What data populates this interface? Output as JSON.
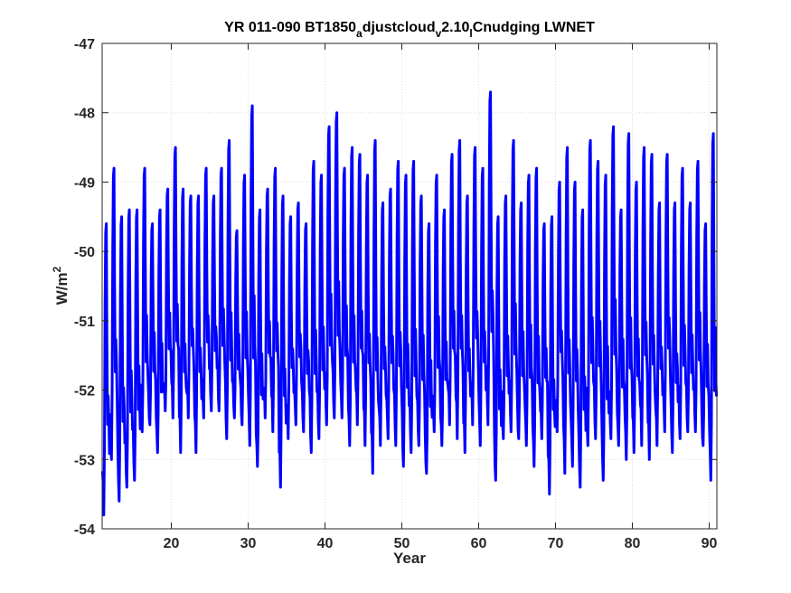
{
  "chart_data": {
    "type": "line",
    "title": {
      "p1": "YR 011-090 BT1850",
      "s1": "a",
      "p2": "djustcloud",
      "s2": "v",
      "p3": "2.10",
      "s3": "l",
      "p4": "Cnudging LWNET"
    },
    "xlabel": "Year",
    "ylabel": {
      "base": "W/m",
      "sup": "2"
    },
    "xlim": [
      11,
      91
    ],
    "ylim": [
      -54,
      -47
    ],
    "xticks": [
      20,
      30,
      40,
      50,
      60,
      70,
      80,
      90
    ],
    "yticks": [
      -54,
      -53,
      -52,
      -51,
      -50,
      -49,
      -48,
      -47
    ],
    "xtick_labels": [
      "20",
      "30",
      "40",
      "50",
      "60",
      "70",
      "80",
      "90"
    ],
    "ytick_labels": [
      "-54",
      "-53",
      "-52",
      "-51",
      "-50",
      "-49",
      "-48",
      "-47"
    ],
    "grid": true,
    "line_color": "#0000ff",
    "series": [
      {
        "name": "",
        "color": "#0000ff",
        "annual_maxima": [
          -49.6,
          -48.8,
          -49.5,
          -49.4,
          -49.4,
          -48.8,
          -49.6,
          -49.4,
          -49.1,
          -48.5,
          -49.1,
          -49.2,
          -49.2,
          -48.8,
          -49.2,
          -48.8,
          -48.4,
          -49.7,
          -48.9,
          -47.9,
          -49.4,
          -49.1,
          -48.8,
          -49.2,
          -49.5,
          -49.3,
          -49.6,
          -48.7,
          -48.9,
          -48.2,
          -48.0,
          -48.8,
          -48.5,
          -48.6,
          -48.9,
          -48.4,
          -49.3,
          -49.1,
          -48.7,
          -48.9,
          -48.7,
          -49.2,
          -49.6,
          -48.9,
          -49.4,
          -48.6,
          -48.4,
          -49.2,
          -48.5,
          -48.8,
          -47.7,
          -49.5,
          -49.2,
          -48.4,
          -49.3,
          -48.9,
          -48.8,
          -49.6,
          -49.5,
          -49.0,
          -48.5,
          -49.0,
          -49.4,
          -48.4,
          -48.7,
          -48.9,
          -48.2,
          -49.4,
          -48.3,
          -49.0,
          -48.5,
          -48.6,
          -49.3,
          -48.6,
          -49.3,
          -48.8,
          -49.3,
          -48.7,
          -49.6,
          -48.3
        ],
        "annual_minima": [
          -53.8,
          -53.0,
          -53.6,
          -53.4,
          -53.3,
          -52.6,
          -52.5,
          -52.9,
          -52.3,
          -52.4,
          -52.9,
          -52.4,
          -52.9,
          -52.4,
          -52.3,
          -52.3,
          -52.7,
          -52.4,
          -52.5,
          -52.8,
          -53.1,
          -52.4,
          -52.6,
          -53.4,
          -52.7,
          -52.5,
          -52.6,
          -52.9,
          -52.7,
          -52.5,
          -52.4,
          -52.4,
          -52.8,
          -52.5,
          -52.8,
          -53.2,
          -52.8,
          -52.7,
          -52.8,
          -53.1,
          -52.9,
          -52.8,
          -53.2,
          -52.6,
          -52.8,
          -52.5,
          -52.7,
          -52.9,
          -52.5,
          -52.8,
          -52.5,
          -53.3,
          -52.7,
          -52.6,
          -52.7,
          -52.8,
          -53.1,
          -52.7,
          -53.5,
          -52.6,
          -53.2,
          -53.1,
          -53.4,
          -52.8,
          -52.7,
          -53.3,
          -52.7,
          -52.8,
          -53.0,
          -52.9,
          -52.8,
          -53.0,
          -52.8,
          -52.6,
          -52.9,
          -52.7,
          -52.6,
          -52.6,
          -52.8,
          -53.3
        ]
      }
    ]
  }
}
